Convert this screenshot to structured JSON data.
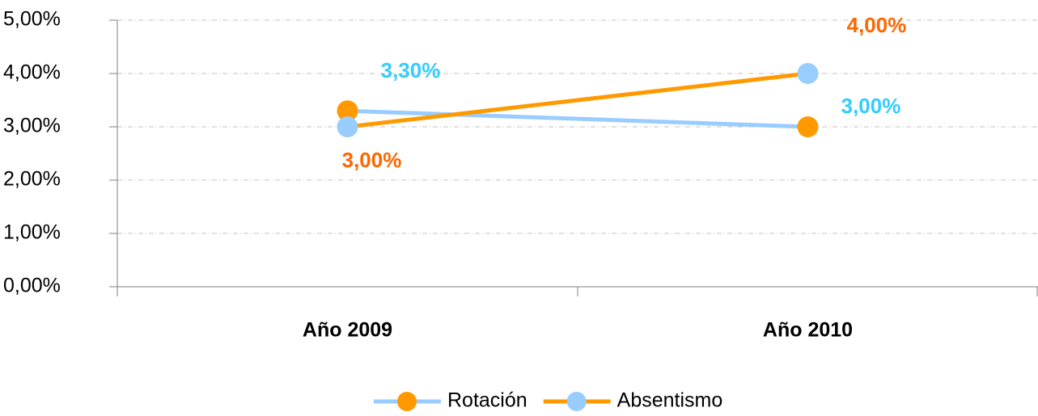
{
  "chart_data": {
    "type": "line",
    "categories": [
      "Año 2009",
      "Año 2010"
    ],
    "series": [
      {
        "name": "Rotación",
        "color": "#99ccff",
        "marker_color": "#ff9900",
        "label_color": "#33ccff",
        "values": [
          3.3,
          3.0
        ],
        "value_labels": [
          "3,30%",
          "3,00%"
        ]
      },
      {
        "name": "Absentismo",
        "color": "#ff9900",
        "marker_color": "#99ccff",
        "label_color": "#ff6600",
        "values": [
          3.0,
          4.0
        ],
        "value_labels": [
          "3,00%",
          "4,00%"
        ]
      }
    ],
    "ylim": [
      0,
      5
    ],
    "yticks": [
      {
        "value": 0,
        "label": "0,00%"
      },
      {
        "value": 1,
        "label": "1,00%"
      },
      {
        "value": 2,
        "label": "2,00%"
      },
      {
        "value": 3,
        "label": "3,00%"
      },
      {
        "value": 4,
        "label": "4,00%"
      },
      {
        "value": 5,
        "label": "5,00%"
      }
    ],
    "grid": true,
    "legend": "bottom"
  }
}
